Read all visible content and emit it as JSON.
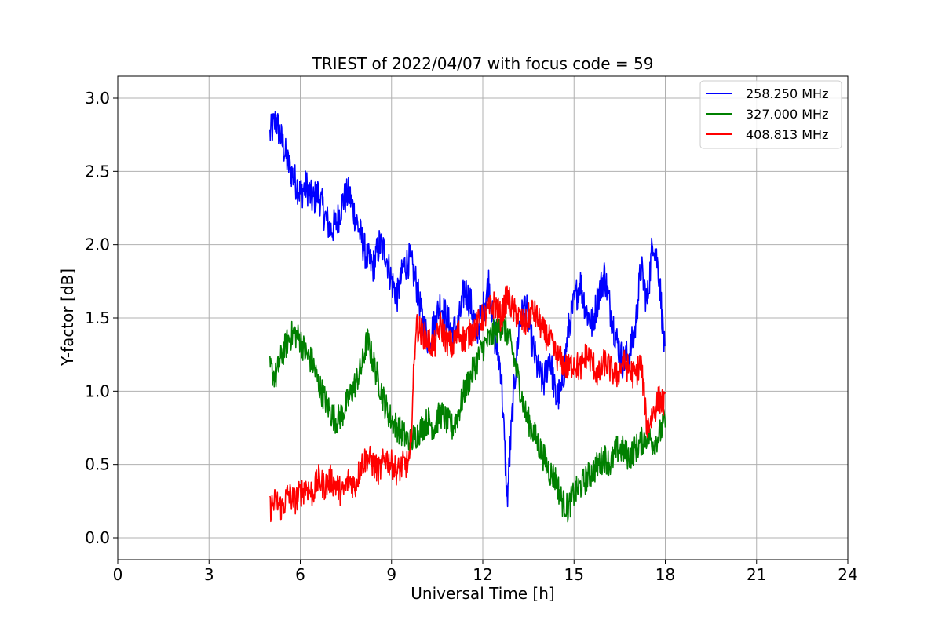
{
  "chart_data": {
    "type": "line",
    "title": "TRIEST of 2022/04/07 with focus code = 59",
    "xlabel": "Universal Time [h]",
    "ylabel": "Y-factor [dB]",
    "xlim": [
      0,
      24
    ],
    "ylim": [
      -0.15,
      3.15
    ],
    "xticks": [
      0,
      3,
      6,
      9,
      12,
      15,
      18,
      21,
      24
    ],
    "yticks": [
      0.0,
      0.5,
      1.0,
      1.5,
      2.0,
      2.5,
      3.0
    ],
    "xtick_labels": [
      "0",
      "3",
      "6",
      "9",
      "12",
      "15",
      "18",
      "21",
      "24"
    ],
    "ytick_labels": [
      "0.0",
      "0.5",
      "1.0",
      "1.5",
      "2.0",
      "2.5",
      "3.0"
    ],
    "grid": true,
    "legend_position": "top-right",
    "series": [
      {
        "name": "258.250 MHz",
        "color": "#0000ff",
        "x": [
          5.0,
          5.2,
          5.4,
          5.6,
          5.8,
          6.0,
          6.2,
          6.4,
          6.6,
          6.8,
          7.0,
          7.2,
          7.4,
          7.6,
          7.8,
          8.0,
          8.2,
          8.4,
          8.6,
          8.8,
          9.0,
          9.2,
          9.4,
          9.6,
          9.8,
          10.0,
          10.2,
          10.4,
          10.6,
          10.8,
          11.0,
          11.2,
          11.4,
          11.6,
          11.8,
          12.0,
          12.2,
          12.4,
          12.6,
          12.8,
          13.0,
          13.2,
          13.4,
          13.6,
          13.8,
          14.0,
          14.2,
          14.4,
          14.6,
          14.8,
          15.0,
          15.2,
          15.4,
          15.6,
          15.8,
          16.0,
          16.2,
          16.4,
          16.6,
          16.8,
          17.0,
          17.2,
          17.4,
          17.6,
          17.8,
          18.0
        ],
        "y": [
          2.75,
          2.85,
          2.7,
          2.55,
          2.45,
          2.35,
          2.4,
          2.3,
          2.35,
          2.2,
          2.1,
          2.15,
          2.3,
          2.35,
          2.2,
          2.05,
          1.9,
          1.85,
          2.0,
          1.95,
          1.75,
          1.65,
          1.85,
          1.9,
          1.75,
          1.5,
          1.35,
          1.45,
          1.6,
          1.5,
          1.4,
          1.45,
          1.7,
          1.6,
          1.4,
          1.55,
          1.75,
          1.35,
          1.15,
          0.25,
          0.95,
          1.45,
          1.6,
          1.35,
          1.15,
          1.05,
          1.25,
          0.95,
          1.0,
          1.4,
          1.6,
          1.75,
          1.55,
          1.45,
          1.65,
          1.8,
          1.55,
          1.35,
          1.2,
          1.25,
          1.4,
          1.85,
          1.6,
          2.05,
          1.8,
          1.2
        ]
      },
      {
        "name": "327.000 MHz",
        "color": "#008000",
        "x": [
          5.0,
          5.2,
          5.4,
          5.6,
          5.8,
          6.0,
          6.2,
          6.4,
          6.6,
          6.8,
          7.0,
          7.2,
          7.4,
          7.6,
          7.8,
          8.0,
          8.2,
          8.4,
          8.6,
          8.8,
          9.0,
          9.2,
          9.4,
          9.6,
          9.8,
          10.0,
          10.2,
          10.4,
          10.6,
          10.8,
          11.0,
          11.2,
          11.4,
          11.6,
          11.8,
          12.0,
          12.2,
          12.4,
          12.6,
          12.8,
          13.0,
          13.2,
          13.4,
          13.6,
          13.8,
          14.0,
          14.2,
          14.4,
          14.6,
          14.8,
          15.0,
          15.2,
          15.4,
          15.6,
          15.8,
          16.0,
          16.2,
          16.4,
          16.6,
          16.8,
          17.0,
          17.2,
          17.4,
          17.6,
          17.8,
          18.0
        ],
        "y": [
          1.15,
          1.1,
          1.25,
          1.35,
          1.4,
          1.35,
          1.25,
          1.2,
          1.05,
          0.95,
          0.85,
          0.8,
          0.85,
          0.95,
          1.05,
          1.15,
          1.35,
          1.2,
          1.05,
          0.9,
          0.8,
          0.75,
          0.7,
          0.65,
          0.7,
          0.75,
          0.8,
          0.75,
          0.85,
          0.8,
          0.75,
          0.85,
          1.0,
          1.1,
          1.2,
          1.3,
          1.35,
          1.4,
          1.45,
          1.4,
          1.25,
          1.05,
          0.85,
          0.75,
          0.65,
          0.55,
          0.45,
          0.4,
          0.25,
          0.2,
          0.3,
          0.35,
          0.4,
          0.45,
          0.5,
          0.55,
          0.5,
          0.6,
          0.6,
          0.55,
          0.6,
          0.65,
          0.7,
          0.65,
          0.7,
          0.8
        ]
      },
      {
        "name": "408.813 MHz",
        "color": "#ff0000",
        "x": [
          5.0,
          5.2,
          5.4,
          5.6,
          5.8,
          6.0,
          6.2,
          6.4,
          6.6,
          6.8,
          7.0,
          7.2,
          7.4,
          7.6,
          7.8,
          8.0,
          8.2,
          8.4,
          8.6,
          8.8,
          9.0,
          9.2,
          9.4,
          9.6,
          9.8,
          10.0,
          10.2,
          10.4,
          10.6,
          10.8,
          11.0,
          11.2,
          11.4,
          11.6,
          11.8,
          12.0,
          12.2,
          12.4,
          12.6,
          12.8,
          13.0,
          13.2,
          13.4,
          13.6,
          13.8,
          14.0,
          14.2,
          14.4,
          14.6,
          14.8,
          15.0,
          15.2,
          15.4,
          15.6,
          15.8,
          16.0,
          16.2,
          16.4,
          16.6,
          16.8,
          17.0,
          17.2,
          17.4,
          17.6,
          17.8,
          18.0
        ],
        "y": [
          0.2,
          0.25,
          0.2,
          0.3,
          0.25,
          0.3,
          0.35,
          0.3,
          0.4,
          0.35,
          0.4,
          0.35,
          0.3,
          0.4,
          0.35,
          0.5,
          0.55,
          0.5,
          0.45,
          0.55,
          0.5,
          0.45,
          0.5,
          0.5,
          1.45,
          1.4,
          1.35,
          1.3,
          1.45,
          1.35,
          1.3,
          1.4,
          1.35,
          1.4,
          1.45,
          1.5,
          1.55,
          1.6,
          1.5,
          1.65,
          1.55,
          1.5,
          1.45,
          1.55,
          1.5,
          1.4,
          1.35,
          1.25,
          1.2,
          1.15,
          1.2,
          1.15,
          1.25,
          1.2,
          1.1,
          1.2,
          1.15,
          1.1,
          1.2,
          1.15,
          1.1,
          1.2,
          0.75,
          0.85,
          0.95,
          0.9
        ]
      }
    ]
  }
}
